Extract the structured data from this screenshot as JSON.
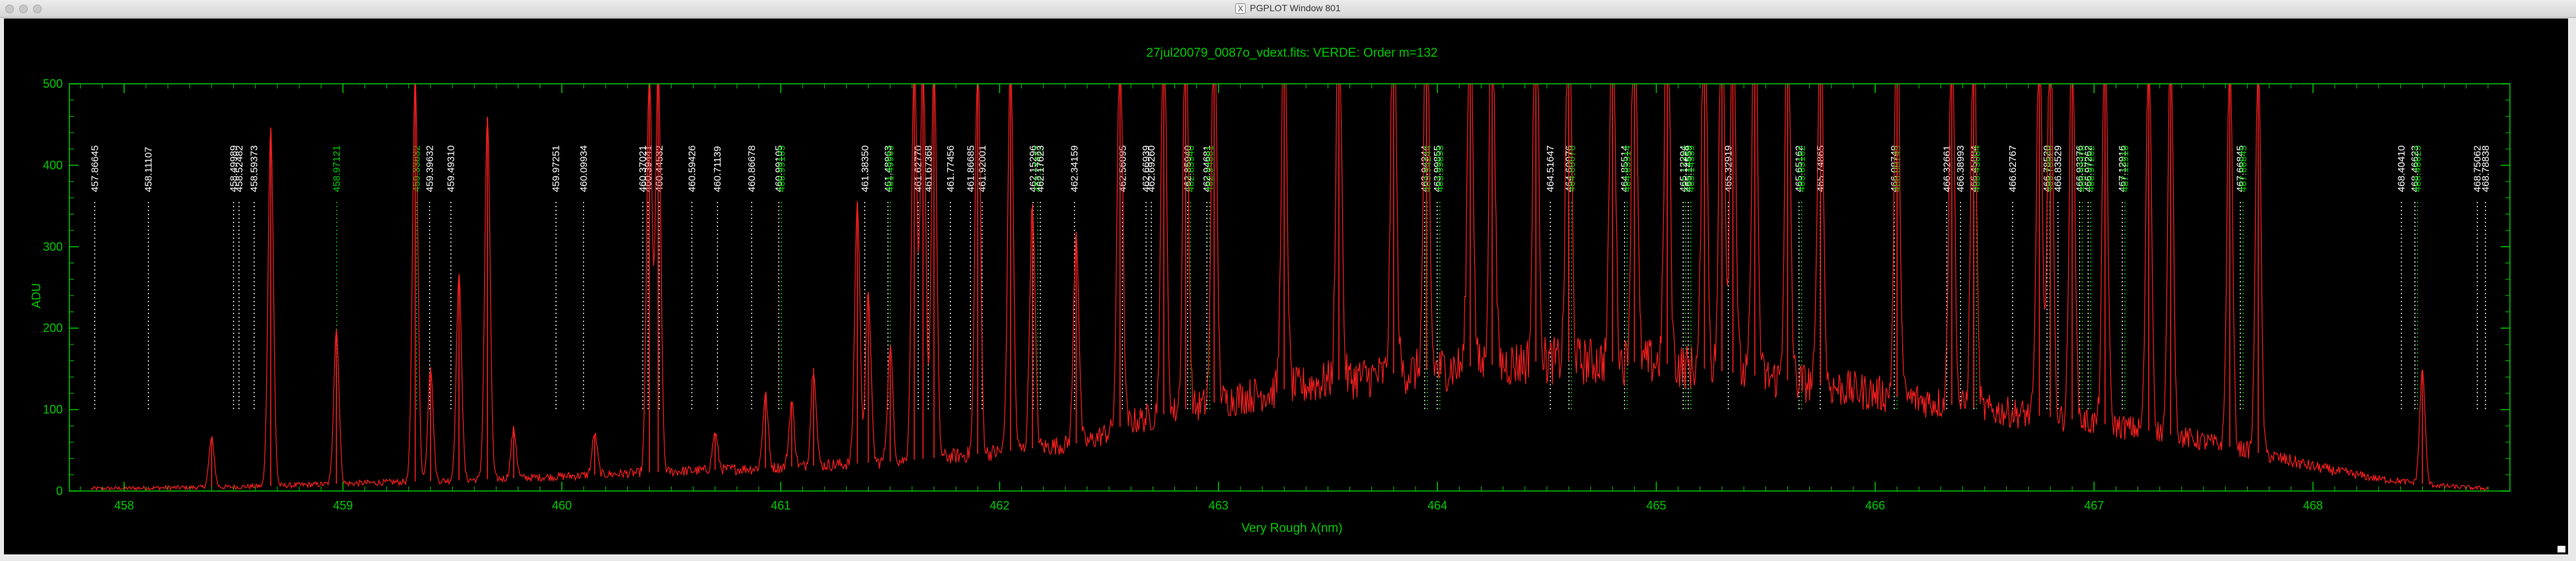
{
  "window": {
    "title": "PGPLOT Window 801",
    "icon": "x11-icon"
  },
  "chart_data": {
    "type": "line",
    "title": "27jul20079_0087o_vdext.fits: VERDE: Order m=132",
    "xlabel": "Very Rough λ(nm)",
    "ylabel": "ADU",
    "xlim": [
      457.75,
      468.9
    ],
    "ylim": [
      0,
      500
    ],
    "xticks": [
      458,
      459,
      460,
      461,
      462,
      463,
      464,
      465,
      466,
      467,
      468
    ],
    "yticks": [
      0,
      100,
      200,
      300,
      400,
      500
    ],
    "grid": false,
    "colors": {
      "axes": "#00c800",
      "spectrum": "#ff2020",
      "label_white": "#ffffff",
      "label_green": "#00d200"
    },
    "continuum": [
      [
        457.85,
        3
      ],
      [
        458.5,
        5
      ],
      [
        459.0,
        9
      ],
      [
        459.5,
        13
      ],
      [
        460.0,
        18
      ],
      [
        460.5,
        24
      ],
      [
        461.0,
        29
      ],
      [
        461.5,
        36
      ],
      [
        462.0,
        48
      ],
      [
        462.4,
        60
      ],
      [
        462.6,
        85
      ],
      [
        463.0,
        110
      ],
      [
        463.5,
        135
      ],
      [
        464.0,
        150
      ],
      [
        464.5,
        160
      ],
      [
        465.0,
        158
      ],
      [
        465.5,
        140
      ],
      [
        466.0,
        120
      ],
      [
        466.5,
        100
      ],
      [
        466.9,
        88
      ],
      [
        467.3,
        72
      ],
      [
        467.7,
        50
      ],
      [
        468.0,
        30
      ],
      [
        468.3,
        15
      ],
      [
        468.6,
        6
      ],
      [
        468.8,
        3
      ]
    ],
    "emission_lines": [
      [
        458.4,
        60
      ],
      [
        458.67,
        440
      ],
      [
        458.97,
        190
      ],
      [
        459.33,
        500
      ],
      [
        459.4,
        140
      ],
      [
        459.53,
        250
      ],
      [
        459.66,
        445
      ],
      [
        459.78,
        60
      ],
      [
        460.15,
        50
      ],
      [
        460.4,
        500
      ],
      [
        460.44,
        500
      ],
      [
        460.7,
        45
      ],
      [
        460.93,
        90
      ],
      [
        461.05,
        80
      ],
      [
        461.15,
        120
      ],
      [
        461.35,
        320
      ],
      [
        461.4,
        210
      ],
      [
        461.5,
        140
      ],
      [
        461.61,
        500
      ],
      [
        461.65,
        500
      ],
      [
        461.7,
        500
      ],
      [
        461.9,
        500
      ],
      [
        462.05,
        500
      ],
      [
        462.15,
        300
      ],
      [
        462.35,
        260
      ],
      [
        462.55,
        500
      ],
      [
        462.75,
        500
      ],
      [
        462.85,
        500
      ],
      [
        462.98,
        500
      ],
      [
        463.3,
        500
      ],
      [
        463.55,
        500
      ],
      [
        463.8,
        500
      ],
      [
        463.95,
        500
      ],
      [
        464.15,
        500
      ],
      [
        464.25,
        500
      ],
      [
        464.45,
        500
      ],
      [
        464.6,
        500
      ],
      [
        464.8,
        500
      ],
      [
        464.9,
        500
      ],
      [
        465.05,
        500
      ],
      [
        465.22,
        500
      ],
      [
        465.3,
        500
      ],
      [
        465.35,
        500
      ],
      [
        465.45,
        500
      ],
      [
        465.6,
        500
      ],
      [
        465.75,
        500
      ],
      [
        466.1,
        500
      ],
      [
        466.35,
        500
      ],
      [
        466.45,
        500
      ],
      [
        466.75,
        500
      ],
      [
        466.8,
        500
      ],
      [
        466.9,
        500
      ],
      [
        467.05,
        500
      ],
      [
        467.25,
        500
      ],
      [
        467.35,
        500
      ],
      [
        467.62,
        500
      ],
      [
        467.75,
        500
      ],
      [
        468.5,
        140
      ]
    ],
    "line_ids": [
      {
        "label": "457.86645",
        "x": 457.866,
        "color": "white"
      },
      {
        "label": "458.11107",
        "x": 458.111,
        "color": "white"
      },
      {
        "label": "458.49989",
        "x": 458.5,
        "color": "white"
      },
      {
        "label": "458.52482",
        "x": 458.525,
        "color": "white"
      },
      {
        "label": "458.59373",
        "x": 458.594,
        "color": "white"
      },
      {
        "label": "458.97121",
        "x": 458.971,
        "color": "green"
      },
      {
        "label": "459.33632",
        "x": 459.336,
        "color": "green"
      },
      {
        "label": "459.39632",
        "x": 459.396,
        "color": "white"
      },
      {
        "label": "459.49310",
        "x": 459.493,
        "color": "white"
      },
      {
        "label": "459.97251",
        "x": 459.973,
        "color": "white"
      },
      {
        "label": "460.09934",
        "x": 460.099,
        "color": "white"
      },
      {
        "label": "460.37021",
        "x": 460.37,
        "color": "white"
      },
      {
        "label": "460.39441",
        "x": 460.394,
        "color": "white"
      },
      {
        "label": "460.44532",
        "x": 460.445,
        "color": "white"
      },
      {
        "label": "460.59426",
        "x": 460.594,
        "color": "white"
      },
      {
        "label": "460.71139",
        "x": 460.711,
        "color": "white"
      },
      {
        "label": "460.86678",
        "x": 460.867,
        "color": "white"
      },
      {
        "label": "460.99105",
        "x": 460.991,
        "color": "white"
      },
      {
        "label": "460.99105",
        "x": 461.003,
        "color": "green"
      },
      {
        "label": "461.38350",
        "x": 461.384,
        "color": "white"
      },
      {
        "label": "461.48963",
        "x": 461.49,
        "color": "white"
      },
      {
        "label": "461.49963",
        "x": 461.5,
        "color": "green"
      },
      {
        "label": "461.62770",
        "x": 461.628,
        "color": "white"
      },
      {
        "label": "461.67368",
        "x": 461.674,
        "color": "white"
      },
      {
        "label": "461.77456",
        "x": 461.775,
        "color": "white"
      },
      {
        "label": "461.86685",
        "x": 461.867,
        "color": "white"
      },
      {
        "label": "461.92001",
        "x": 461.92,
        "color": "white"
      },
      {
        "label": "462.15296",
        "x": 462.153,
        "color": "white"
      },
      {
        "label": "462.17423",
        "x": 462.174,
        "color": "green"
      },
      {
        "label": "462.17623",
        "x": 462.186,
        "color": "white"
      },
      {
        "label": "462.34159",
        "x": 462.342,
        "color": "white"
      },
      {
        "label": "462.56095",
        "x": 462.561,
        "color": "white"
      },
      {
        "label": "462.66939",
        "x": 462.669,
        "color": "white"
      },
      {
        "label": "462.69260",
        "x": 462.693,
        "color": "white"
      },
      {
        "label": "462.85940",
        "x": 462.859,
        "color": "white"
      },
      {
        "label": "462.85940",
        "x": 462.872,
        "color": "green"
      },
      {
        "label": "462.94681",
        "x": 462.947,
        "color": "white"
      },
      {
        "label": "462.94681",
        "x": 462.96,
        "color": "green"
      },
      {
        "label": "463.94244",
        "x": 463.942,
        "color": "white"
      },
      {
        "label": "463.94244",
        "x": 463.954,
        "color": "green"
      },
      {
        "label": "463.99855",
        "x": 463.999,
        "color": "white"
      },
      {
        "label": "463.99855",
        "x": 464.011,
        "color": "green"
      },
      {
        "label": "464.51647",
        "x": 464.516,
        "color": "white"
      },
      {
        "label": "464.60076",
        "x": 464.601,
        "color": "white"
      },
      {
        "label": "464.60076",
        "x": 464.613,
        "color": "green"
      },
      {
        "label": "464.85514",
        "x": 464.855,
        "color": "white"
      },
      {
        "label": "464.85514",
        "x": 464.867,
        "color": "green"
      },
      {
        "label": "465.12294",
        "x": 465.123,
        "color": "white"
      },
      {
        "label": "465.12294",
        "x": 465.135,
        "color": "green"
      },
      {
        "label": "465.14559",
        "x": 465.146,
        "color": "white"
      },
      {
        "label": "465.14559",
        "x": 465.158,
        "color": "green"
      },
      {
        "label": "465.32919",
        "x": 465.329,
        "color": "white"
      },
      {
        "label": "465.65162",
        "x": 465.652,
        "color": "white"
      },
      {
        "label": "465.65162",
        "x": 465.664,
        "color": "green"
      },
      {
        "label": "465.74865",
        "x": 465.749,
        "color": "white"
      },
      {
        "label": "466.08749",
        "x": 466.087,
        "color": "white"
      },
      {
        "label": "466.08749",
        "x": 466.1,
        "color": "green"
      },
      {
        "label": "466.32661",
        "x": 466.327,
        "color": "white"
      },
      {
        "label": "466.38993",
        "x": 466.39,
        "color": "white"
      },
      {
        "label": "466.45084",
        "x": 466.451,
        "color": "white"
      },
      {
        "label": "466.45084",
        "x": 466.463,
        "color": "green"
      },
      {
        "label": "466.62767",
        "x": 466.628,
        "color": "white"
      },
      {
        "label": "466.78520",
        "x": 466.785,
        "color": "white"
      },
      {
        "label": "466.78520",
        "x": 466.797,
        "color": "green"
      },
      {
        "label": "466.83529",
        "x": 466.835,
        "color": "white"
      },
      {
        "label": "466.93376",
        "x": 466.934,
        "color": "white"
      },
      {
        "label": "466.93376",
        "x": 466.946,
        "color": "green"
      },
      {
        "label": "466.97262",
        "x": 466.973,
        "color": "white"
      },
      {
        "label": "466.97262",
        "x": 466.985,
        "color": "green"
      },
      {
        "label": "467.12916",
        "x": 467.129,
        "color": "white"
      },
      {
        "label": "467.12916",
        "x": 467.141,
        "color": "green"
      },
      {
        "label": "467.66845",
        "x": 467.668,
        "color": "white"
      },
      {
        "label": "467.66845",
        "x": 467.681,
        "color": "green"
      },
      {
        "label": "468.40410",
        "x": 468.404,
        "color": "white"
      },
      {
        "label": "468.46623",
        "x": 468.466,
        "color": "white"
      },
      {
        "label": "468.46623",
        "x": 468.478,
        "color": "green"
      },
      {
        "label": "468.75062",
        "x": 468.751,
        "color": "white"
      },
      {
        "label": "468.78838",
        "x": 468.788,
        "color": "white"
      }
    ]
  }
}
